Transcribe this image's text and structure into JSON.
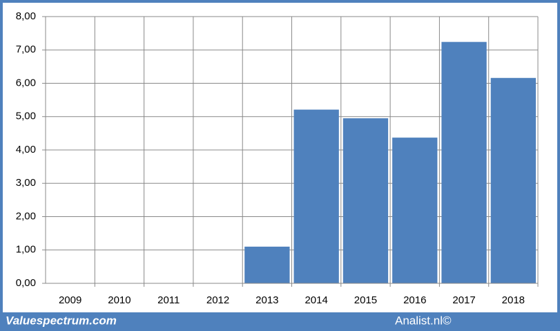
{
  "chart_data": {
    "type": "bar",
    "categories": [
      "2009",
      "2010",
      "2011",
      "2012",
      "2013",
      "2014",
      "2015",
      "2016",
      "2017",
      "2018"
    ],
    "values": [
      null,
      null,
      null,
      null,
      1.1,
      5.21,
      4.95,
      4.37,
      7.24,
      6.16
    ],
    "color": "#4f81bd",
    "ylim": [
      0,
      8
    ],
    "yticks": [
      {
        "value": 0,
        "label": "0,00"
      },
      {
        "value": 1,
        "label": "1,00"
      },
      {
        "value": 2,
        "label": "2,00"
      },
      {
        "value": 3,
        "label": "3,00"
      },
      {
        "value": 4,
        "label": "4,00"
      },
      {
        "value": 5,
        "label": "5,00"
      },
      {
        "value": 6,
        "label": "6,00"
      },
      {
        "value": 7,
        "label": "7,00"
      },
      {
        "value": 8,
        "label": "8,00"
      }
    ],
    "grid": true,
    "footer_left": "Valuespectrum.com",
    "footer_right": "Analist.nl©"
  }
}
